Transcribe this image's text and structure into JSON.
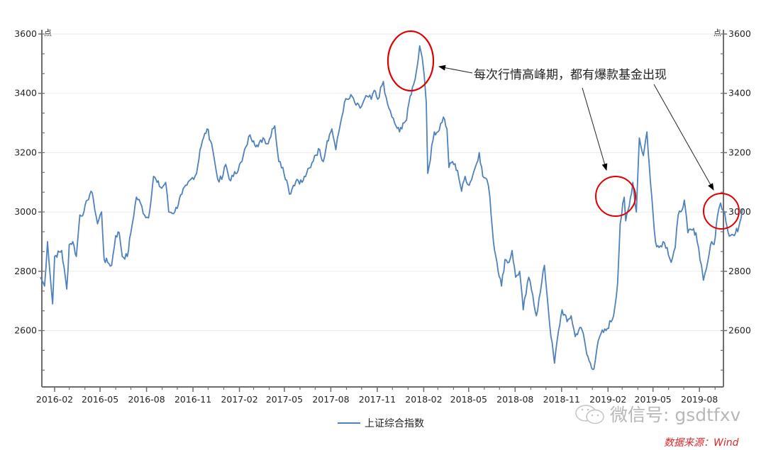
{
  "chart_data": {
    "type": "line",
    "title": "",
    "xlabel": "",
    "ylabel": "点",
    "ylabel_right": "点",
    "ylim": [
      2410,
      3600
    ],
    "y_ticks": [
      2600,
      2800,
      3000,
      3200,
      3400,
      3600
    ],
    "y_minor_step": 66.7,
    "x_ticks": [
      "2016-02",
      "2016-05",
      "2016-08",
      "2016-11",
      "2017-02",
      "2017-05",
      "2017-08",
      "2017-11",
      "2018-02",
      "2018-05",
      "2018-08",
      "2018-11",
      "2019-02",
      "2019-05",
      "2019-08"
    ],
    "grid": "horizontal",
    "legend_position": "bottom",
    "series": [
      {
        "name": "上证综合指数",
        "color": "#4f81bd",
        "points": [
          [
            "2016-01-04",
            2780
          ],
          [
            "2016-01-12",
            2750
          ],
          [
            "2016-01-18",
            2900
          ],
          [
            "2016-01-26",
            2730
          ],
          [
            "2016-01-28",
            2690
          ],
          [
            "2016-02-01",
            2850
          ],
          [
            "2016-02-15",
            2870
          ],
          [
            "2016-02-25",
            2740
          ],
          [
            "2016-03-01",
            2890
          ],
          [
            "2016-03-08",
            2900
          ],
          [
            "2016-03-15",
            2850
          ],
          [
            "2016-03-22",
            2990
          ],
          [
            "2016-03-30",
            3000
          ],
          [
            "2016-04-06",
            3040
          ],
          [
            "2016-04-13",
            3070
          ],
          [
            "2016-04-18",
            3040
          ],
          [
            "2016-04-26",
            2960
          ],
          [
            "2016-05-04",
            3000
          ],
          [
            "2016-05-09",
            2840
          ],
          [
            "2016-05-16",
            2830
          ],
          [
            "2016-05-24",
            2820
          ],
          [
            "2016-06-01",
            2920
          ],
          [
            "2016-06-08",
            2930
          ],
          [
            "2016-06-14",
            2850
          ],
          [
            "2016-06-24",
            2850
          ],
          [
            "2016-07-01",
            2930
          ],
          [
            "2016-07-12",
            3050
          ],
          [
            "2016-07-20",
            3030
          ],
          [
            "2016-07-28",
            2990
          ],
          [
            "2016-08-05",
            2980
          ],
          [
            "2016-08-15",
            3120
          ],
          [
            "2016-08-22",
            3100
          ],
          [
            "2016-08-31",
            3080
          ],
          [
            "2016-09-08",
            3100
          ],
          [
            "2016-09-14",
            3000
          ],
          [
            "2016-09-26",
            3000
          ],
          [
            "2016-10-10",
            3060
          ],
          [
            "2016-10-20",
            3090
          ],
          [
            "2016-10-28",
            3110
          ],
          [
            "2016-11-08",
            3130
          ],
          [
            "2016-11-15",
            3210
          ],
          [
            "2016-11-22",
            3250
          ],
          [
            "2016-11-29",
            3280
          ],
          [
            "2016-12-08",
            3230
          ],
          [
            "2016-12-14",
            3170
          ],
          [
            "2016-12-20",
            3110
          ],
          [
            "2016-12-28",
            3110
          ],
          [
            "2017-01-05",
            3160
          ],
          [
            "2017-01-12",
            3110
          ],
          [
            "2017-01-20",
            3120
          ],
          [
            "2017-02-06",
            3170
          ],
          [
            "2017-02-14",
            3220
          ],
          [
            "2017-02-22",
            3260
          ],
          [
            "2017-03-01",
            3240
          ],
          [
            "2017-03-10",
            3220
          ],
          [
            "2017-03-20",
            3250
          ],
          [
            "2017-03-30",
            3230
          ],
          [
            "2017-04-07",
            3280
          ],
          [
            "2017-04-12",
            3290
          ],
          [
            "2017-04-20",
            3170
          ],
          [
            "2017-04-28",
            3150
          ],
          [
            "2017-05-08",
            3090
          ],
          [
            "2017-05-11",
            3060
          ],
          [
            "2017-05-19",
            3090
          ],
          [
            "2017-05-26",
            3110
          ],
          [
            "2017-06-05",
            3100
          ],
          [
            "2017-06-14",
            3130
          ],
          [
            "2017-06-22",
            3150
          ],
          [
            "2017-06-30",
            3190
          ],
          [
            "2017-07-10",
            3210
          ],
          [
            "2017-07-17",
            3170
          ],
          [
            "2017-07-25",
            3240
          ],
          [
            "2017-08-03",
            3280
          ],
          [
            "2017-08-11",
            3210
          ],
          [
            "2017-08-17",
            3270
          ],
          [
            "2017-08-28",
            3370
          ],
          [
            "2017-09-05",
            3380
          ],
          [
            "2017-09-12",
            3390
          ],
          [
            "2017-09-20",
            3360
          ],
          [
            "2017-09-28",
            3350
          ],
          [
            "2017-10-12",
            3390
          ],
          [
            "2017-10-20",
            3380
          ],
          [
            "2017-10-26",
            3410
          ],
          [
            "2017-11-02",
            3380
          ],
          [
            "2017-11-13",
            3440
          ],
          [
            "2017-11-16",
            3400
          ],
          [
            "2017-11-24",
            3350
          ],
          [
            "2017-11-30",
            3320
          ],
          [
            "2017-12-08",
            3290
          ],
          [
            "2017-12-15",
            3270
          ],
          [
            "2017-12-22",
            3300
          ],
          [
            "2017-12-29",
            3310
          ],
          [
            "2018-01-05",
            3390
          ],
          [
            "2018-01-12",
            3430
          ],
          [
            "2018-01-18",
            3480
          ],
          [
            "2018-01-24",
            3560
          ],
          [
            "2018-01-29",
            3520
          ],
          [
            "2018-02-02",
            3460
          ],
          [
            "2018-02-06",
            3370
          ],
          [
            "2018-02-09",
            3130
          ],
          [
            "2018-02-22",
            3270
          ],
          [
            "2018-03-01",
            3270
          ],
          [
            "2018-03-12",
            3320
          ],
          [
            "2018-03-19",
            3280
          ],
          [
            "2018-03-23",
            3150
          ],
          [
            "2018-03-30",
            3170
          ],
          [
            "2018-04-09",
            3140
          ],
          [
            "2018-04-17",
            3070
          ],
          [
            "2018-04-24",
            3120
          ],
          [
            "2018-05-02",
            3090
          ],
          [
            "2018-05-14",
            3150
          ],
          [
            "2018-05-22",
            3200
          ],
          [
            "2018-05-29",
            3120
          ],
          [
            "2018-06-06",
            3110
          ],
          [
            "2018-06-12",
            3050
          ],
          [
            "2018-06-19",
            2900
          ],
          [
            "2018-06-26",
            2830
          ],
          [
            "2018-07-05",
            2750
          ],
          [
            "2018-07-12",
            2840
          ],
          [
            "2018-07-20",
            2830
          ],
          [
            "2018-07-26",
            2870
          ],
          [
            "2018-08-02",
            2780
          ],
          [
            "2018-08-10",
            2800
          ],
          [
            "2018-08-17",
            2670
          ],
          [
            "2018-08-28",
            2780
          ],
          [
            "2018-09-05",
            2720
          ],
          [
            "2018-09-12",
            2650
          ],
          [
            "2018-09-20",
            2730
          ],
          [
            "2018-09-28",
            2820
          ],
          [
            "2018-10-11",
            2580
          ],
          [
            "2018-10-18",
            2490
          ],
          [
            "2018-10-26",
            2600
          ],
          [
            "2018-11-02",
            2670
          ],
          [
            "2018-11-12",
            2630
          ],
          [
            "2018-11-20",
            2650
          ],
          [
            "2018-11-28",
            2580
          ],
          [
            "2018-12-07",
            2610
          ],
          [
            "2018-12-14",
            2590
          ],
          [
            "2018-12-21",
            2520
          ],
          [
            "2018-12-28",
            2490
          ],
          [
            "2019-01-04",
            2470
          ],
          [
            "2019-01-10",
            2540
          ],
          [
            "2019-01-18",
            2590
          ],
          [
            "2019-01-28",
            2600
          ],
          [
            "2019-02-12",
            2650
          ],
          [
            "2019-02-20",
            2760
          ],
          [
            "2019-02-25",
            2960
          ],
          [
            "2019-03-05",
            3050
          ],
          [
            "2019-03-08",
            2970
          ],
          [
            "2019-03-15",
            3020
          ],
          [
            "2019-03-22",
            3100
          ],
          [
            "2019-03-29",
            3000
          ],
          [
            "2019-04-04",
            3250
          ],
          [
            "2019-04-12",
            3190
          ],
          [
            "2019-04-19",
            3270
          ],
          [
            "2019-04-26",
            3100
          ],
          [
            "2019-05-06",
            2900
          ],
          [
            "2019-05-13",
            2880
          ],
          [
            "2019-05-21",
            2900
          ],
          [
            "2019-05-29",
            2880
          ],
          [
            "2019-06-06",
            2830
          ],
          [
            "2019-06-14",
            2880
          ],
          [
            "2019-06-20",
            2990
          ],
          [
            "2019-06-25",
            3000
          ],
          [
            "2019-07-02",
            3040
          ],
          [
            "2019-07-09",
            2930
          ],
          [
            "2019-07-16",
            2940
          ],
          [
            "2019-07-25",
            2930
          ],
          [
            "2019-08-05",
            2820
          ],
          [
            "2019-08-09",
            2770
          ],
          [
            "2019-08-15",
            2810
          ],
          [
            "2019-08-23",
            2890
          ],
          [
            "2019-08-30",
            2890
          ],
          [
            "2019-09-06",
            2990
          ],
          [
            "2019-09-12",
            3030
          ],
          [
            "2019-09-20",
            3000
          ],
          [
            "2019-09-27",
            2930
          ],
          [
            "2019-10-09",
            2920
          ],
          [
            "2019-10-18",
            2950
          ],
          [
            "2019-10-25",
            3010
          ]
        ]
      }
    ],
    "annotations": [
      {
        "type": "text",
        "text": "每次行情高峰期，都有爆款基金出现"
      },
      {
        "type": "circle",
        "target": "2018-01 peak"
      },
      {
        "type": "circle",
        "target": "2019-03 range"
      },
      {
        "type": "circle",
        "target": "2019-09/10 range"
      }
    ]
  },
  "axes": {
    "left_unit": "点",
    "right_unit": "点",
    "y_ticks": [
      "3600",
      "3400",
      "3200",
      "3000",
      "2800",
      "2600"
    ],
    "x_ticks": [
      "2016-02",
      "2016-05",
      "2016-08",
      "2016-11",
      "2017-02",
      "2017-05",
      "2017-08",
      "2017-11",
      "2018-02",
      "2018-05",
      "2018-08",
      "2018-11",
      "2019-02",
      "2019-05",
      "2019-08"
    ]
  },
  "annotation_text": "每次行情高峰期，都有爆款基金出现",
  "legend": {
    "label": "上证综合指数",
    "color": "#4f81bd"
  },
  "watermark": {
    "text": "微信号: gsdtfxv"
  },
  "source": {
    "text": "数据来源：Wind",
    "color": "#e0262b"
  },
  "colors": {
    "line": "#4f81bd",
    "circle": "#e00000",
    "axis": "#6d6d6d",
    "grid": "#ececec"
  }
}
